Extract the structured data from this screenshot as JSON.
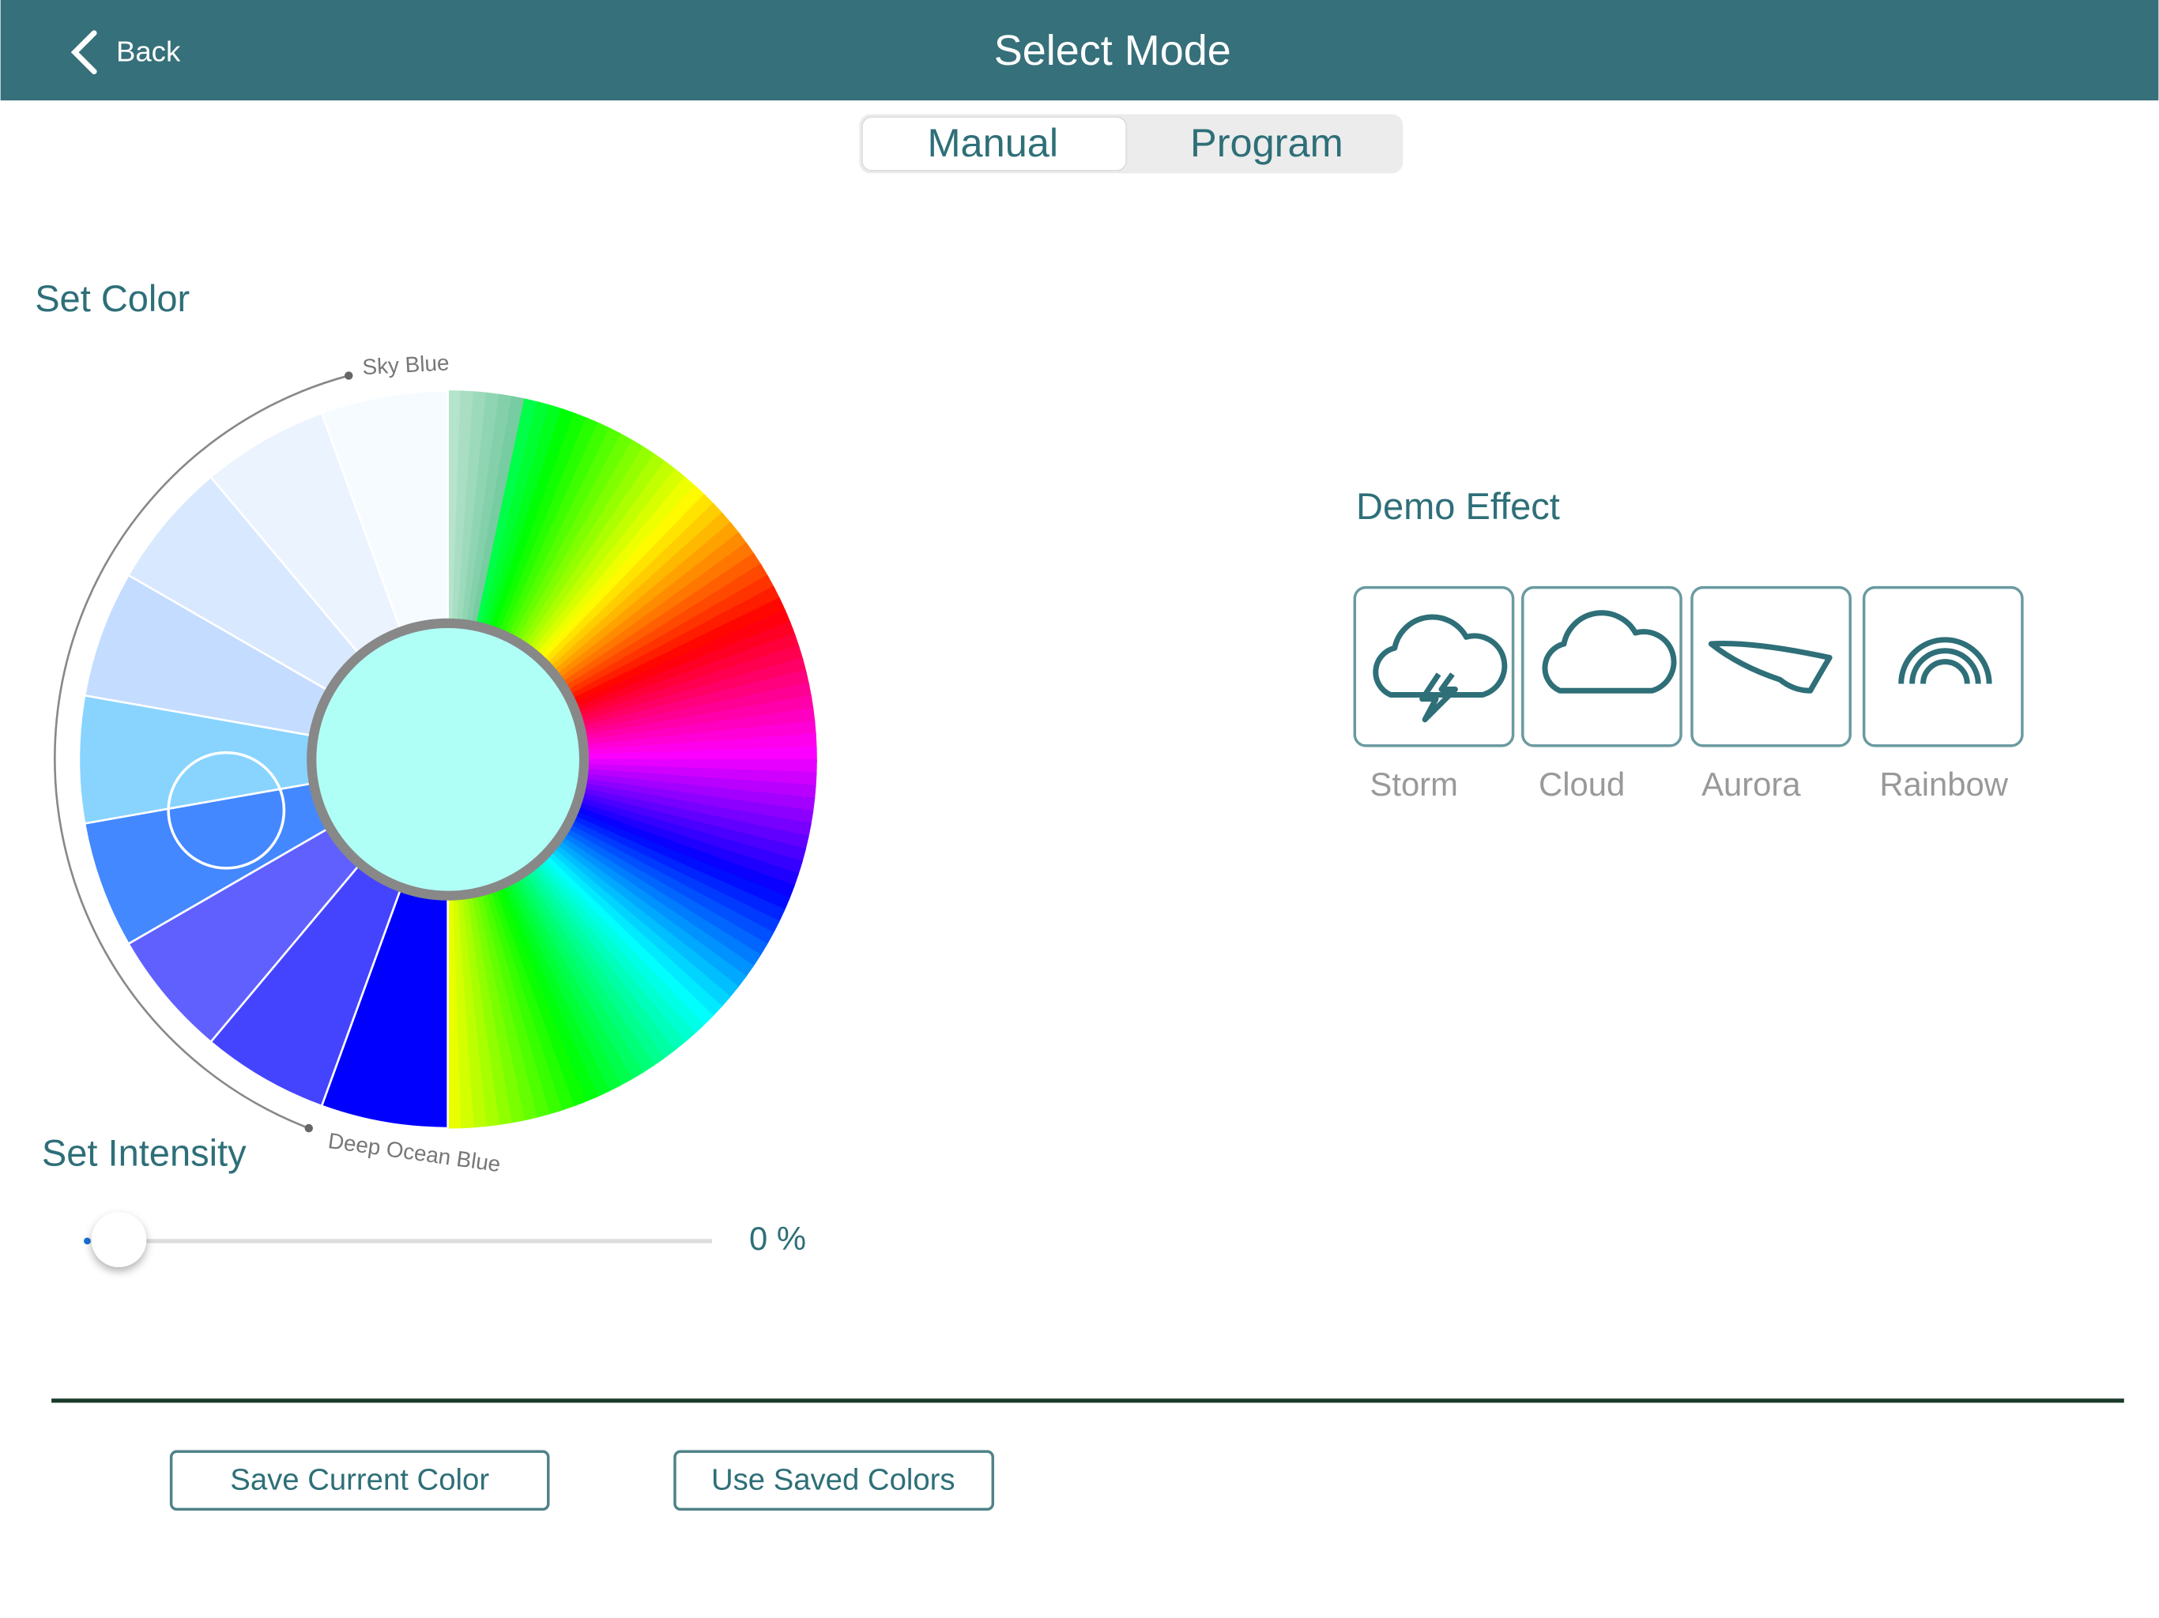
{
  "header": {
    "back": "Back",
    "title": "Select Mode"
  },
  "tabs": [
    "Manual",
    "Program"
  ],
  "color_section": {
    "title": "Set Color",
    "wheel_start": "Sky Blue",
    "wheel_end": "Deep Ocean Blue"
  },
  "intensity_section": {
    "title": "Set Intensity",
    "value": "0 %"
  },
  "demo_section": {
    "title": "Demo Effect",
    "effects": [
      "Storm",
      "Cloud",
      "Aurora",
      "Rainbow"
    ]
  },
  "buttons": [
    "Save Current Color",
    "Use Saved Colors"
  ]
}
